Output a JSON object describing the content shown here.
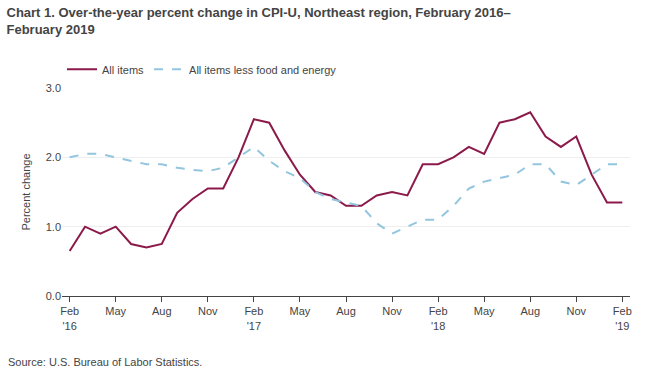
{
  "chart_data": {
    "type": "line",
    "title": "Chart 1. Over-the-year percent change in CPI-U, Northeast region, February 2016–\nFebruary 2019",
    "ylabel": "Percent change",
    "annotations": [
      "Source: U.S. Bureau of Labor Statistics."
    ],
    "categories": [
      "Feb\n'16",
      null,
      null,
      "May",
      null,
      null,
      "Aug",
      null,
      null,
      "Nov",
      null,
      null,
      "Feb\n'17",
      null,
      null,
      "May",
      null,
      null,
      "Aug",
      null,
      null,
      "Nov",
      null,
      null,
      "Feb\n'18",
      null,
      null,
      "May",
      null,
      null,
      "Aug",
      null,
      null,
      "Nov",
      null,
      null,
      "Feb\n'19"
    ],
    "series": [
      {
        "name": "All items",
        "color": "#8B1A4A",
        "line_style": "solid",
        "values": [
          0.65,
          1.0,
          0.9,
          1.0,
          0.75,
          0.7,
          0.75,
          1.2,
          1.4,
          1.55,
          1.55,
          2.0,
          2.55,
          2.5,
          2.1,
          1.75,
          1.5,
          1.45,
          1.3,
          1.3,
          1.45,
          1.5,
          1.45,
          1.9,
          1.9,
          2.0,
          2.15,
          2.05,
          2.5,
          2.55,
          2.65,
          2.3,
          2.15,
          2.3,
          1.75,
          1.35,
          1.35
        ]
      },
      {
        "name": "All items less food and energy",
        "color": "#92c5de",
        "line_style": "dashed",
        "values": [
          2.0,
          2.05,
          2.05,
          2.0,
          1.95,
          1.9,
          1.9,
          1.85,
          1.82,
          1.8,
          1.85,
          2.0,
          2.15,
          1.95,
          1.8,
          1.7,
          1.5,
          1.4,
          1.35,
          1.3,
          1.05,
          0.9,
          1.0,
          1.1,
          1.1,
          1.3,
          1.55,
          1.65,
          1.7,
          1.75,
          1.9,
          1.9,
          1.65,
          1.6,
          1.75,
          1.9,
          1.9
        ]
      }
    ],
    "ylim": [
      0.0,
      3.0
    ],
    "yticks": [
      {
        "value": 0,
        "label": "0.0"
      },
      {
        "value": 1,
        "label": "1.0"
      },
      {
        "value": 2,
        "label": "2.0"
      },
      {
        "value": 3,
        "label": "3.0"
      }
    ],
    "grid": true,
    "legend": "top"
  }
}
